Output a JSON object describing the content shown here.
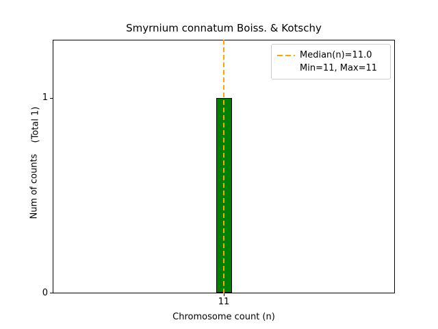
{
  "title": "Smyrnium connatum Boiss. & Kotschy",
  "axes": {
    "xlabel": "Chromosome count (n)",
    "ylabel": "Num of counts",
    "ylabel_secondary": "(Total 1)",
    "xticks": [
      "11"
    ],
    "yticks": [
      "0",
      "1"
    ]
  },
  "legend": {
    "items": [
      {
        "label": "Median(n)=11.0",
        "marker": "dashed-line",
        "color": "#FFA500"
      },
      {
        "label": "Min=11, Max=11",
        "marker": "none"
      }
    ]
  },
  "chart_data": {
    "type": "bar",
    "title": "Smyrnium connatum Boiss. & Kotschy",
    "xlabel": "Chromosome count (n)",
    "ylabel": "Num of counts",
    "annotation_total": "(Total 1)",
    "categories": [
      11
    ],
    "values": [
      1
    ],
    "bar_color": "#008000",
    "bar_edge_color": "#000000",
    "median_line": {
      "x": 11,
      "color": "#FFA500",
      "style": "dashed",
      "label": "Median(n)=11.0"
    },
    "min": 11,
    "max": 11,
    "total_counts": 1,
    "xlim": [
      10,
      12
    ],
    "ylim": [
      0,
      1.3
    ],
    "xticks": [
      11
    ],
    "yticks": [
      0,
      1
    ],
    "grid": false,
    "legend_position": "upper right"
  }
}
